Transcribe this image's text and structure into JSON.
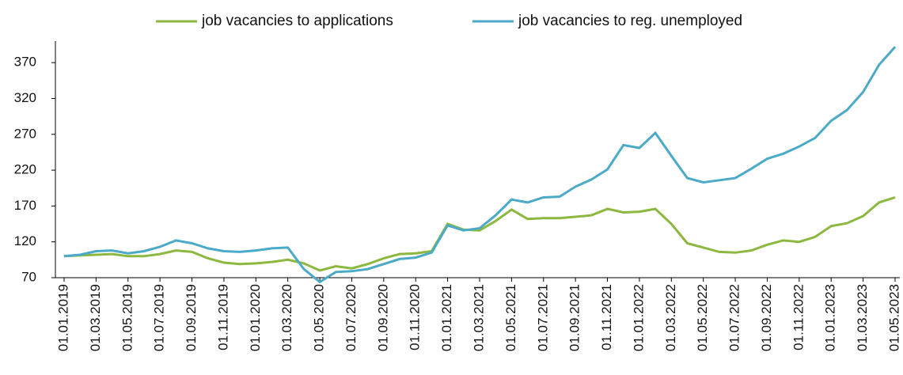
{
  "chart_data": {
    "type": "line",
    "categories": [
      "01.01.2019",
      null,
      "01.03.2019",
      null,
      "01.05.2019",
      null,
      "01.07.2019",
      null,
      "01.09.2019",
      null,
      "01.11.2019",
      null,
      "01.01.2020",
      null,
      "01.03.2020",
      null,
      "01.05.2020",
      null,
      "01.07.2020",
      null,
      "01.09.2020",
      null,
      "01.11.2020",
      null,
      "01.01.2021",
      null,
      "01.03.2021",
      null,
      "01.05.2021",
      null,
      "01.07.2021",
      null,
      "01.09.2021",
      null,
      "01.11.2021",
      null,
      "01.01.2022",
      null,
      "01.03.2022",
      null,
      "01.05.2022",
      null,
      "01.07.2022",
      null,
      "01.09.2022",
      null,
      "01.11.2022",
      null,
      "01.01.2023",
      null,
      "01.03.2023",
      null,
      "01.05.2023"
    ],
    "series": [
      {
        "name": "job vacancies to applications",
        "color": "#8db83f",
        "values": [
          100,
          101,
          102,
          103,
          100,
          100,
          103,
          108,
          106,
          97,
          91,
          89,
          90,
          92,
          95,
          90,
          80,
          86,
          83,
          89,
          97,
          103,
          104,
          107,
          145,
          137,
          136,
          149,
          165,
          152,
          153,
          153,
          155,
          157,
          166,
          161,
          162,
          166,
          145,
          118,
          112,
          106,
          105,
          108,
          116,
          122,
          120,
          127,
          142,
          146,
          156,
          175,
          182
        ]
      },
      {
        "name": "job vacancies to reg. unemployed",
        "color": "#4aaac8",
        "values": [
          100,
          102,
          107,
          108,
          104,
          107,
          113,
          122,
          118,
          111,
          107,
          106,
          108,
          111,
          112,
          82,
          64,
          78,
          79,
          82,
          89,
          96,
          98,
          105,
          143,
          136,
          139,
          157,
          179,
          175,
          182,
          183,
          197,
          207,
          221,
          255,
          251,
          272,
          240,
          209,
          203,
          206,
          209,
          222,
          236,
          243,
          253,
          265,
          289,
          304,
          329,
          367,
          392
        ]
      }
    ],
    "ylim": [
      70,
      400
    ],
    "yticks": [
      70,
      120,
      170,
      220,
      270,
      320,
      370
    ]
  }
}
